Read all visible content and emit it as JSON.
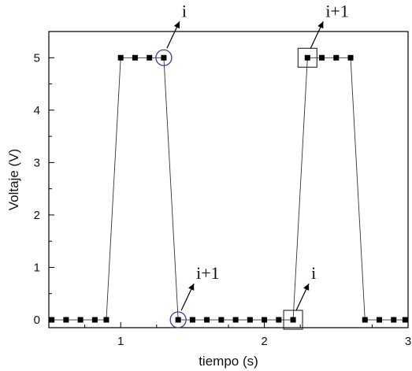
{
  "chart_data": {
    "type": "line",
    "xlabel": "tiempo (s)",
    "ylabel": "Voltaje (V)",
    "xlim": [
      0.5,
      3.0
    ],
    "ylim": [
      -0.15,
      5.5
    ],
    "xticks": [
      1,
      2,
      3
    ],
    "yticks": [
      0,
      1,
      2,
      3,
      4,
      5
    ],
    "grid": false,
    "legend": "none",
    "series": [
      {
        "x": [
          0.52,
          0.62,
          0.72,
          0.82,
          0.9,
          1.0,
          1.1,
          1.2,
          1.3,
          1.4,
          1.5,
          1.6,
          1.7,
          1.8,
          1.9,
          2.0,
          2.1,
          2.2,
          2.3,
          2.4,
          2.5,
          2.6,
          2.7,
          2.8,
          2.9,
          2.98
        ],
        "y": [
          0,
          0,
          0,
          0,
          0,
          5,
          5,
          5,
          5,
          0,
          0,
          0,
          0,
          0,
          0,
          0,
          0,
          0,
          5,
          5,
          5,
          5,
          0,
          0,
          0,
          0
        ],
        "color": "#000000"
      }
    ],
    "annotations": [
      {
        "text": "i",
        "x": 1.3,
        "y": 5,
        "marker": "circle"
      },
      {
        "text": "i+1",
        "x": 1.4,
        "y": 0,
        "marker": "circle"
      },
      {
        "text": "i",
        "x": 2.2,
        "y": 0,
        "marker": "square"
      },
      {
        "text": "i+1",
        "x": 2.3,
        "y": 5,
        "marker": "square"
      }
    ],
    "colors": {
      "circle": "#3a3a9a",
      "square": "#222222",
      "line": "#333333"
    }
  }
}
